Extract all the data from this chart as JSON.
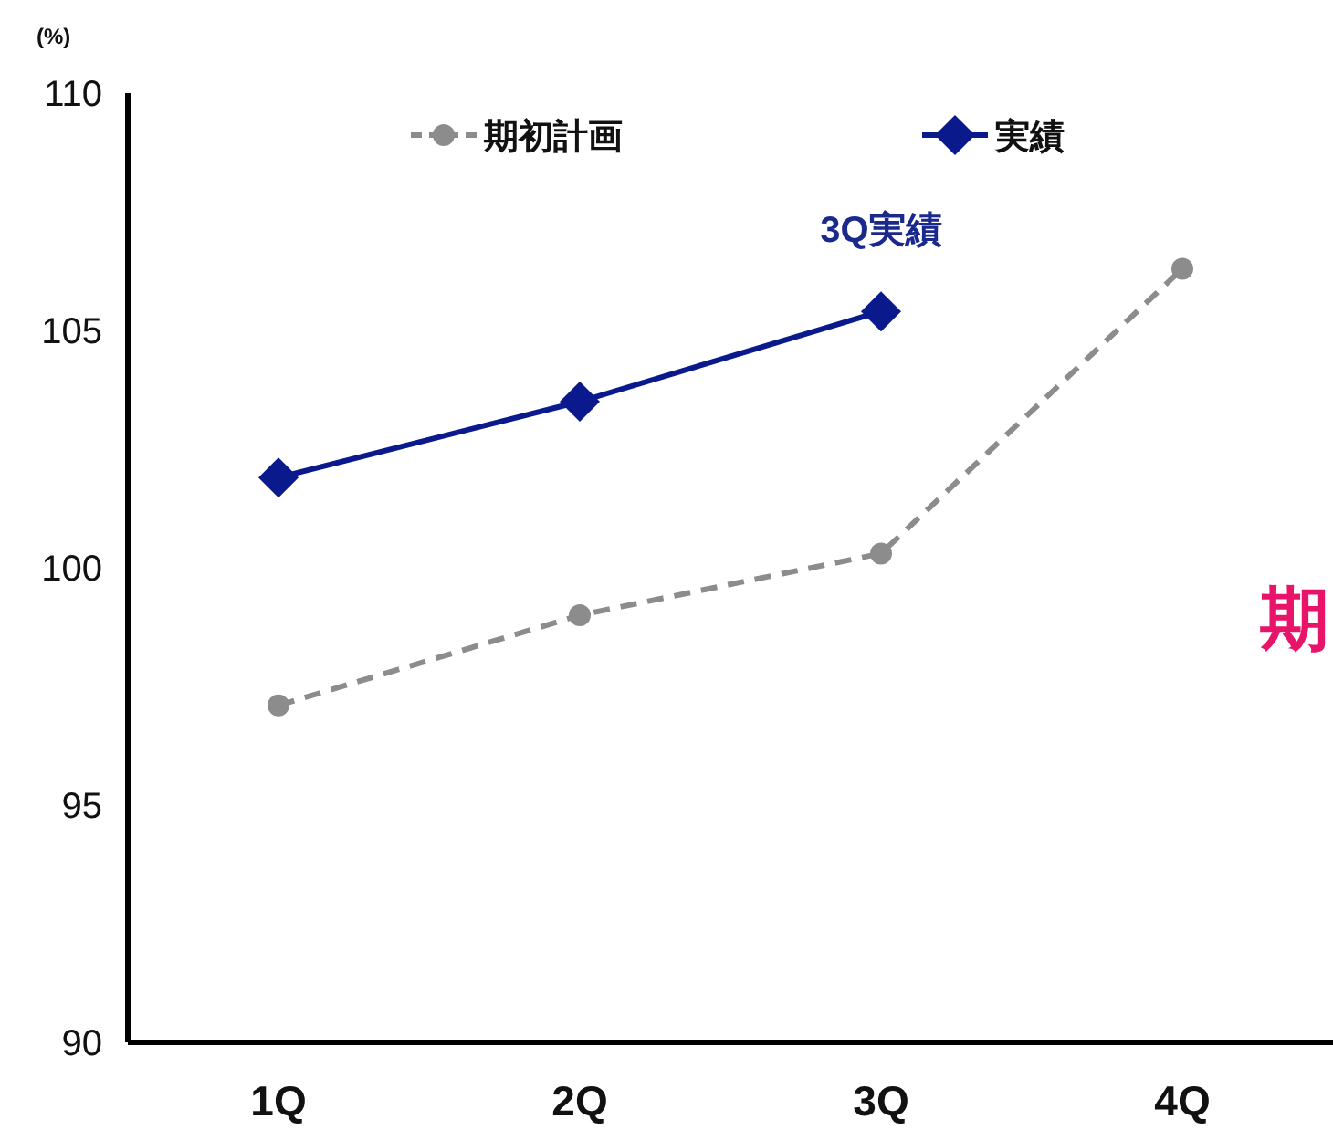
{
  "chart_data": {
    "type": "line",
    "ylabel": "(%)",
    "categories": [
      "1Q",
      "2Q",
      "3Q",
      "4Q"
    ],
    "series": [
      {
        "name": "期初計画",
        "color": "#8c8c8c",
        "values": [
          97.1,
          99.0,
          100.3,
          106.3
        ],
        "marker": "circle",
        "line_style": "dashed"
      },
      {
        "name": "実績",
        "color": "#0a1a8c",
        "values": [
          101.9,
          103.5,
          105.4,
          null
        ],
        "marker": "diamond",
        "line_style": "solid"
      }
    ],
    "ylim": [
      90,
      110
    ],
    "yticks": [
      90,
      95,
      100,
      105,
      110
    ],
    "grid": false,
    "legend": "top",
    "annotations": [
      {
        "text": "3Q実績",
        "x": "3Q",
        "y": 105.4
      },
      "期"
    ]
  }
}
